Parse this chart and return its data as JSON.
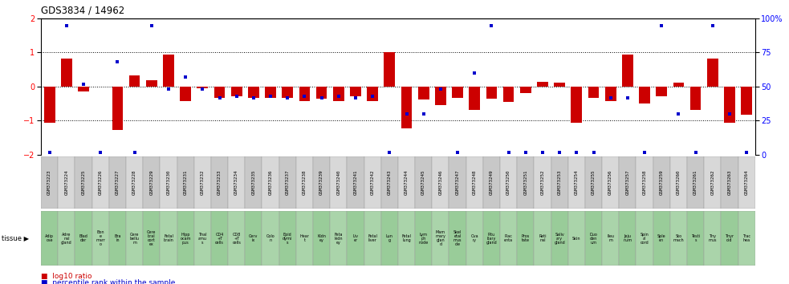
{
  "title": "GDS3834 / 14962",
  "gsm_labels": [
    "GSM373223",
    "GSM373224",
    "GSM373225",
    "GSM373226",
    "GSM373227",
    "GSM373228",
    "GSM373229",
    "GSM373230",
    "GSM373231",
    "GSM373232",
    "GSM373233",
    "GSM373234",
    "GSM373235",
    "GSM373236",
    "GSM373237",
    "GSM373238",
    "GSM373239",
    "GSM373240",
    "GSM373241",
    "GSM373242",
    "GSM373243",
    "GSM373244",
    "GSM373245",
    "GSM373246",
    "GSM373247",
    "GSM373248",
    "GSM373249",
    "GSM373250",
    "GSM373251",
    "GSM373252",
    "GSM373253",
    "GSM373254",
    "GSM373255",
    "GSM373256",
    "GSM373257",
    "GSM373258",
    "GSM373259",
    "GSM373260",
    "GSM373261",
    "GSM373262",
    "GSM373263",
    "GSM373264"
  ],
  "tissue_labels": [
    "Adip\nose",
    "Adre\nnal\ngland",
    "Blad\nder",
    "Bon\ne\nmarr\no",
    "Bra\nin",
    "Cere\nbellu\nm",
    "Cere\nbral\ncort\nex",
    "Fetal\nbrain",
    "Hipp\nocam\npus",
    "Thal\namu\ns",
    "CD4\n+T\ncells",
    "CD8\n+T\ncells",
    "Cerv\nix",
    "Colo\nn",
    "Epid\ndymi\ns",
    "Hear\nt",
    "Kidn\ney",
    "Feta\nkidn\ney",
    "Liv\ner",
    "Fetal\nliver",
    "Lun\ng",
    "Fetal\nlung",
    "Lym\nph\nnode",
    "Mam\nmary\nglan\nd",
    "Skel\netal\nmus\ncle",
    "Ova\nry",
    "Pitu\nitary\ngland",
    "Plac\nenta",
    "Pros\ntate",
    "Reti\nnal",
    "Saliv\nary\ngland",
    "Skin",
    "Duo\nden\num",
    "Ileu\nm",
    "Jeju\nnum",
    "Spin\nal\ncord",
    "Sple\nen",
    "Sto\nmach",
    "Testi\ns",
    "Thy\nmus",
    "Thyr\noid",
    "Trac\nhea"
  ],
  "log10_ratio": [
    -1.05,
    0.82,
    -0.15,
    0.0,
    -1.28,
    0.32,
    0.18,
    0.95,
    -0.42,
    -0.05,
    -0.32,
    -0.28,
    -0.32,
    -0.32,
    -0.32,
    -0.42,
    -0.35,
    -0.42,
    -0.28,
    -0.42,
    1.02,
    -1.22,
    -0.38,
    -0.55,
    -0.32,
    -0.68,
    -0.35,
    -0.45,
    -0.18,
    0.15,
    0.12,
    -1.05,
    -0.32,
    -0.42,
    0.95,
    -0.5,
    -0.28,
    0.12,
    -0.68,
    0.82,
    -1.05,
    -0.82
  ],
  "percentile_rank_pct": [
    2,
    95,
    52,
    2,
    68,
    2,
    95,
    48,
    57,
    48,
    42,
    43,
    42,
    43,
    42,
    43,
    42,
    43,
    42,
    43,
    2,
    30,
    30,
    48,
    2,
    60,
    95,
    2,
    2,
    2,
    2,
    2,
    2,
    42,
    42,
    2,
    95,
    30,
    2,
    95,
    30,
    2
  ],
  "bar_color": "#cc0000",
  "dot_color": "#0000cc",
  "gsm_bg_even": "#c8c8c8",
  "gsm_bg_odd": "#d8d8d8",
  "tissue_bg_even": "#99cc99",
  "tissue_bg_odd": "#aad4aa",
  "ylim_left": [
    -2.0,
    2.0
  ],
  "ylim_right": [
    0,
    100
  ],
  "yticks_left": [
    -2,
    -1,
    0,
    1,
    2
  ],
  "yticks_right": [
    0,
    25,
    50,
    75,
    100
  ],
  "hline_values": [
    -1.0,
    0.0,
    1.0
  ],
  "legend_bar": "log10 ratio",
  "legend_dot": "percentile rank within the sample",
  "tissue_label_text": "tissue"
}
